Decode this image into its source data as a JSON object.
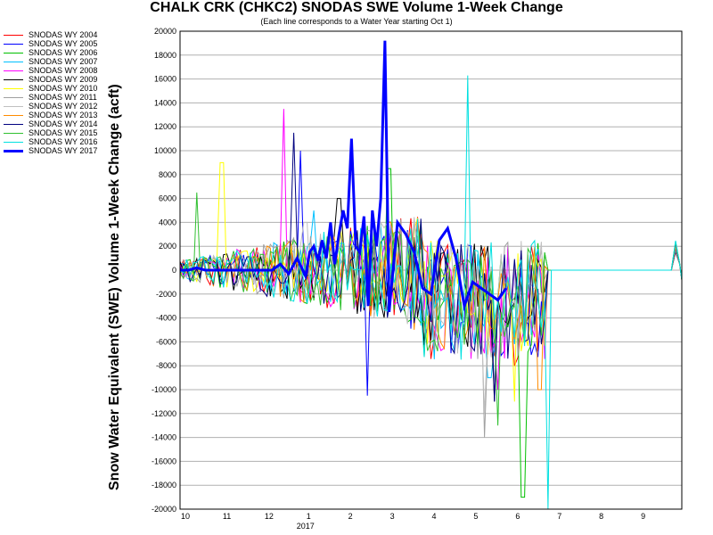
{
  "chart_data": {
    "type": "line",
    "title": "CHALK CRK (CHKC2) SNODAS SWE Volume 1-Week Change",
    "subtitle": "(Each line corresponds to a Water Year starting Oct 1)",
    "ylabel": "Snow Water Equivalent (SWE) Volume 1-Week Change (acft)",
    "xlabel": "",
    "x_tick_labels": [
      "10",
      "11",
      "12",
      "1",
      "2",
      "3",
      "4",
      "5",
      "6",
      "7",
      "8",
      "9"
    ],
    "x_year_label": "2017",
    "ylim": [
      -20000,
      20000
    ],
    "y_ticks": [
      20000,
      18000,
      16000,
      14000,
      12000,
      10000,
      8000,
      6000,
      4000,
      2000,
      0,
      -2000,
      -4000,
      -6000,
      -8000,
      -10000,
      -12000,
      -14000,
      -16000,
      -18000,
      -20000
    ],
    "grid": true,
    "legend_position": "left",
    "series": [
      {
        "name": "SNODAS WY 2004",
        "color": "#ff0000",
        "peak": [
          5,
          3000
        ],
        "trough": [
          8.0,
          -8000
        ]
      },
      {
        "name": "SNODAS WY 2005",
        "color": "#0000ff",
        "peak": [
          2.9,
          10000
        ],
        "trough": [
          4.5,
          -10500
        ]
      },
      {
        "name": "SNODAS WY 2006",
        "color": "#00c000",
        "peak": [
          5.0,
          8500
        ],
        "trough": [
          8.2,
          -19000
        ]
      },
      {
        "name": "SNODAS WY 2007",
        "color": "#00c0ff",
        "peak": [
          3.2,
          5000
        ],
        "trough": [
          7.4,
          -9000
        ]
      },
      {
        "name": "SNODAS WY 2008",
        "color": "#ff00ff",
        "peak": [
          2.5,
          13500
        ],
        "trough": [
          7.6,
          -10000
        ]
      },
      {
        "name": "SNODAS WY 2009",
        "color": "#000000",
        "peak": [
          3.8,
          6000
        ],
        "trough": [
          7.5,
          -11000
        ]
      },
      {
        "name": "SNODAS WY 2010",
        "color": "#ffff00",
        "peak": [
          1.0,
          9000
        ],
        "trough": [
          8.0,
          -11000
        ]
      },
      {
        "name": "SNODAS WY 2011",
        "color": "#a0a0a0",
        "peak": [
          5.0,
          3000
        ],
        "trough": [
          7.3,
          -14000
        ]
      },
      {
        "name": "SNODAS WY 2012",
        "color": "#c0c0c0",
        "peak": [
          3.0,
          4000
        ],
        "trough": [
          7.3,
          -12000
        ]
      },
      {
        "name": "SNODAS WY 2013",
        "color": "#ff8c00",
        "peak": [
          5.0,
          4000
        ],
        "trough": [
          8.6,
          -10000
        ]
      },
      {
        "name": "SNODAS WY 2014",
        "color": "#000080",
        "peak": [
          2.7,
          11500
        ],
        "trough": [
          7.5,
          -11000
        ]
      },
      {
        "name": "SNODAS WY 2015",
        "color": "#30c030",
        "peak": [
          0.4,
          6500
        ],
        "trough": [
          7.6,
          -13000
        ]
      },
      {
        "name": "SNODAS WY 2016",
        "color": "#00e0e0",
        "peak": [
          6.9,
          16300
        ],
        "trough": [
          8.8,
          -20000
        ]
      },
      {
        "name": "SNODAS WY 2017",
        "color": "#0000ff",
        "bold": true,
        "x": [
          0.0,
          0.2,
          0.4,
          0.6,
          0.8,
          1.0,
          1.2,
          1.4,
          1.6,
          1.8,
          2.0,
          2.2,
          2.4,
          2.6,
          2.8,
          3.0,
          3.1,
          3.2,
          3.3,
          3.4,
          3.5,
          3.6,
          3.7,
          3.8,
          3.9,
          4.0,
          4.1,
          4.2,
          4.3,
          4.4,
          4.5,
          4.6,
          4.7,
          4.8,
          4.9,
          5.0,
          5.2,
          5.4,
          5.6,
          5.8,
          6.0,
          6.2,
          6.4,
          6.6,
          6.8,
          7.0,
          7.2,
          7.4,
          7.6,
          7.8
        ],
        "y": [
          0,
          0,
          200,
          0,
          0,
          0,
          0,
          0,
          0,
          0,
          0,
          0,
          500,
          -300,
          1000,
          -500,
          1500,
          2000,
          800,
          2500,
          1000,
          4000,
          500,
          3000,
          5000,
          3500,
          11000,
          2000,
          1500,
          4500,
          -3000,
          5000,
          2000,
          6000,
          19200,
          -3500,
          4000,
          3000,
          1500,
          -1500,
          -2000,
          2500,
          3500,
          1000,
          -3000,
          -1000,
          -1500,
          -2000,
          -2500,
          -1500
        ]
      }
    ]
  }
}
